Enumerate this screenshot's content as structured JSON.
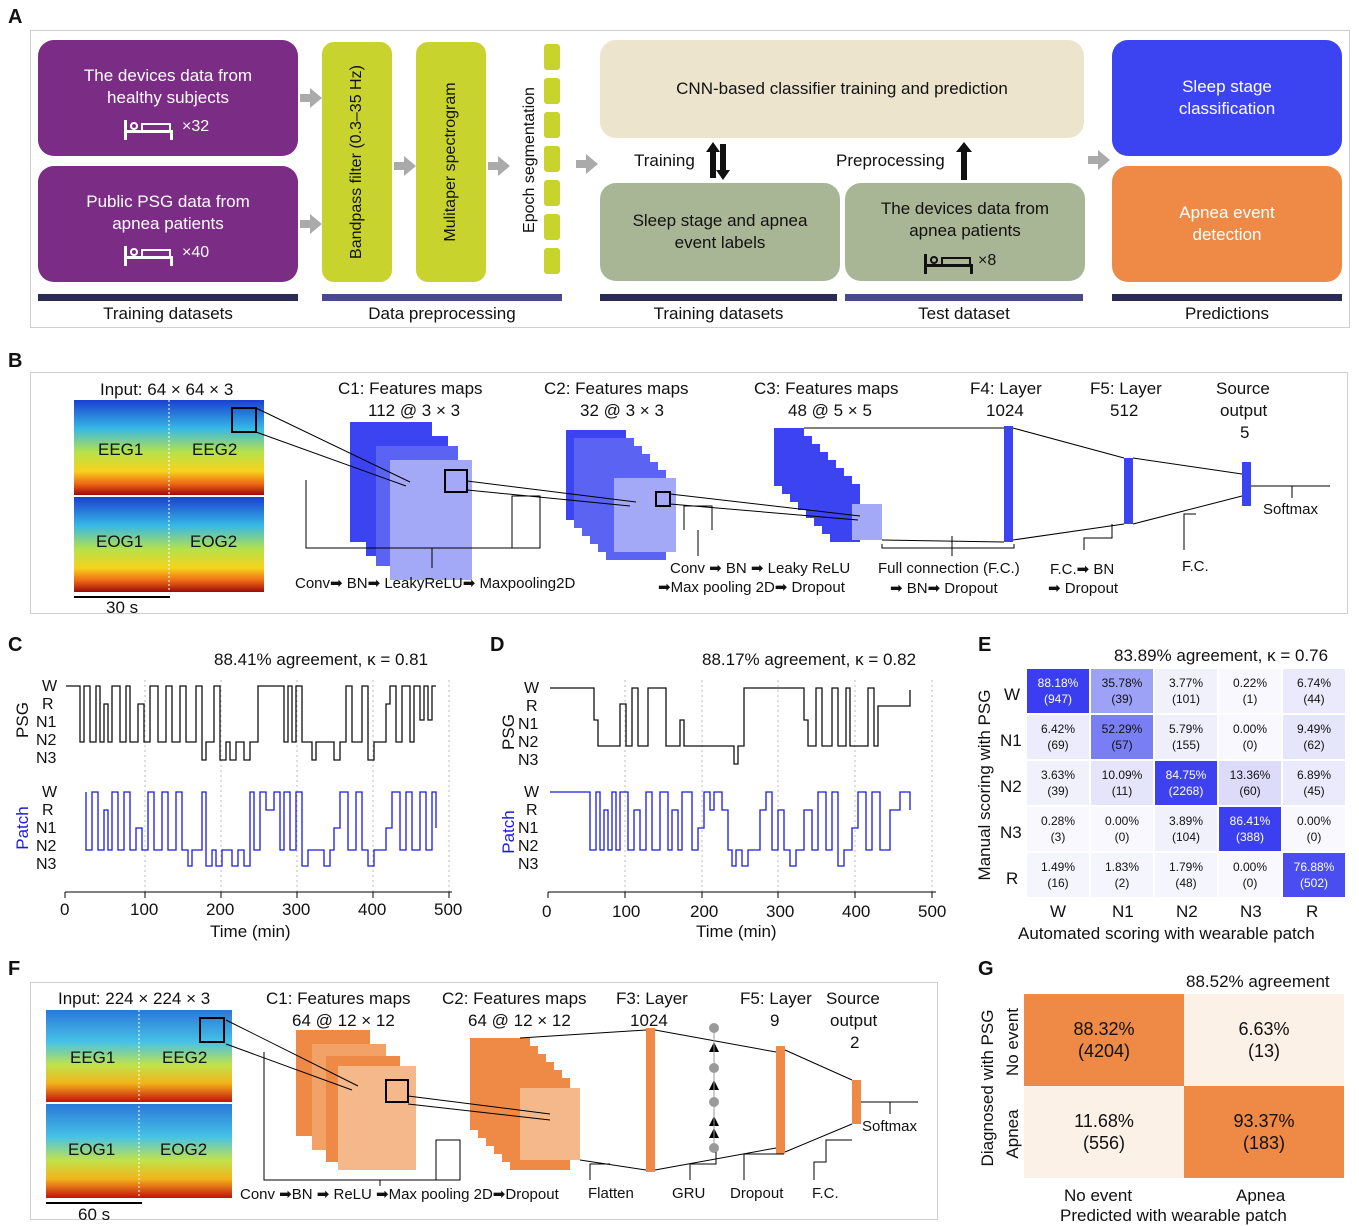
{
  "panels": {
    "a": "A",
    "b": "B",
    "c": "C",
    "d": "D",
    "e": "E",
    "f": "F",
    "g": "G"
  },
  "panelA": {
    "box_healthy": "The devices data from healthy subjects",
    "count_healthy": "×32",
    "box_public": "Public PSG data from apnea patients",
    "count_public": "×40",
    "bandpass": "Bandpass filter (0.3–35 Hz)",
    "multitaper": "Mulitaper spectrogram",
    "epoch": "Epoch segmentation",
    "cnn": "CNN-based classifier training and prediction",
    "training": "Training",
    "preprocessing": "Preprocessing",
    "labels": "Sleep stage and apnea event labels",
    "devices_apnea": "The devices data from apnea patients",
    "count_apnea": "×8",
    "sleep_class": "Sleep stage classification",
    "apnea_detect": "Apnea event detection",
    "bars": [
      "Training datasets",
      "Data preprocessing",
      "Training datasets",
      "Test dataset",
      "Predictions"
    ],
    "colors": {
      "purple": "#7b2d86",
      "lime": "#c8d42d",
      "beige": "#ede4ce",
      "sage": "#a9b695",
      "blue": "#3b44f0",
      "orange": "#ee8a45",
      "navy": "#2b2b55"
    }
  },
  "panelB": {
    "input": "Input: 64 × 64 × 3",
    "tiles": [
      "EEG1",
      "EEG2",
      "EOG1",
      "EOG2"
    ],
    "scale": "30 s",
    "c1": "C1: Features maps",
    "c1_dim": "112 @ 3 × 3",
    "c2": "C2: Features maps",
    "c2_dim": "32 @ 3 × 3",
    "c3": "C3: Features maps",
    "c3_dim": "48 @ 5 × 5",
    "f4": "F4: Layer",
    "f4_dim": "1024",
    "f5": "F5: Layer",
    "f5_dim": "512",
    "src": "Source",
    "src2": "output",
    "src_dim": "5",
    "softmax": "Softmax",
    "op1": "Conv➡ BN➡ LeakyReLU➡ Maxpooling2D",
    "op2a": "Conv ➡ BN ➡ Leaky ReLU",
    "op2b": "➡Max pooling 2D➡ Dropout",
    "op3a": "Full connection (F.C.)",
    "op3b": "➡ BN➡ Dropout",
    "op4a": "F.C.➡ BN",
    "op4b": "➡ Dropout",
    "op5": "F.C."
  },
  "panelC": {
    "title": "88.41% agreement, κ = 0.81",
    "psg": "PSG",
    "patch": "Patch",
    "stages": [
      "W",
      "R",
      "N1",
      "N2",
      "N3"
    ],
    "xticks": [
      "0",
      "100",
      "200",
      "300",
      "400",
      "500"
    ],
    "xlabel": "Time (min)"
  },
  "panelD": {
    "title": "88.17% agreement, κ = 0.82",
    "psg": "PSG",
    "patch": "Patch",
    "stages": [
      "W",
      "R",
      "N1",
      "N2",
      "N3"
    ],
    "xticks": [
      "0",
      "100",
      "200",
      "300",
      "400",
      "500"
    ],
    "xlabel": "Time (min)"
  },
  "panelE": {
    "title": "83.89% agreement, κ = 0.76",
    "ylabel": "Manual scoring with PSG",
    "xlabel": "Automated scoring with wearable patch",
    "rows": [
      "W",
      "N1",
      "N2",
      "N3",
      "R"
    ],
    "cols": [
      "W",
      "N1",
      "N2",
      "N3",
      "R"
    ],
    "cells": [
      [
        [
          "88.18%",
          "(947)"
        ],
        [
          "35.78%",
          "(39)"
        ],
        [
          "3.77%",
          "(101)"
        ],
        [
          "0.22%",
          "(1)"
        ],
        [
          "6.74%",
          "(44)"
        ]
      ],
      [
        [
          "6.42%",
          "(69)"
        ],
        [
          "52.29%",
          "(57)"
        ],
        [
          "5.79%",
          "(155)"
        ],
        [
          "0.00%",
          "(0)"
        ],
        [
          "9.49%",
          "(62)"
        ]
      ],
      [
        [
          "3.63%",
          "(39)"
        ],
        [
          "10.09%",
          "(11)"
        ],
        [
          "84.75%",
          "(2268)"
        ],
        [
          "13.36%",
          "(60)"
        ],
        [
          "6.89%",
          "(45)"
        ]
      ],
      [
        [
          "0.28%",
          "(3)"
        ],
        [
          "0.00%",
          "(0)"
        ],
        [
          "3.89%",
          "(104)"
        ],
        [
          "86.41%",
          "(388)"
        ],
        [
          "0.00%",
          "(0)"
        ]
      ],
      [
        [
          "1.49%",
          "(16)"
        ],
        [
          "1.83%",
          "(2)"
        ],
        [
          "1.79%",
          "(48)"
        ],
        [
          "0.00%",
          "(0)"
        ],
        [
          "76.88%",
          "(502)"
        ]
      ]
    ]
  },
  "panelF": {
    "input": "Input: 224 × 224 × 3",
    "tiles": [
      "EEG1",
      "EEG2",
      "EOG1",
      "EOG2"
    ],
    "scale": "60 s",
    "c1": "C1: Features maps",
    "c1_dim": "64 @ 12 × 12",
    "c2": "C2: Features maps",
    "c2_dim": "64 @ 12 × 12",
    "f3": "F3: Layer",
    "f3_dim": "1024",
    "f5": "F5: Layer",
    "f5_dim": "9",
    "src": "Source",
    "src2": "output",
    "src_dim": "2",
    "softmax": "Softmax",
    "op1": "Conv ➡BN ➡ ReLU ➡Max pooling 2D➡Dropout",
    "flatten": "Flatten",
    "gru": "GRU",
    "dropout": "Dropout",
    "fc": "F.C."
  },
  "panelG": {
    "title": "88.52% agreement",
    "ylabel": "Diagnosed with PSG",
    "xlabel": "Predicted with wearable patch",
    "rows": [
      "No event",
      "Apnea"
    ],
    "cols": [
      "No event",
      "Apnea"
    ],
    "cells": [
      [
        [
          "88.32%",
          "(4204)"
        ],
        [
          "6.63%",
          "(13)"
        ]
      ],
      [
        [
          "11.68%",
          "(556)"
        ],
        [
          "93.37%",
          "(183)"
        ]
      ]
    ]
  }
}
